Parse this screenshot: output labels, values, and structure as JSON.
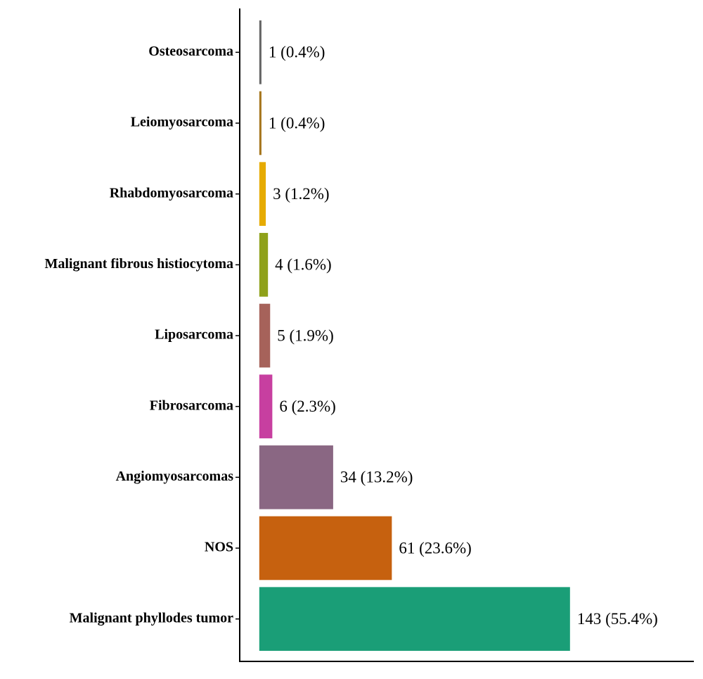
{
  "chart_data": {
    "type": "bar",
    "orientation": "horizontal",
    "categories": [
      "Osteosarcoma",
      "Leiomyosarcoma",
      "Rhabdomyosarcoma",
      "Malignant fibrous histiocytoma",
      "Liposarcoma",
      "Fibrosarcoma",
      "Angiomyosarcomas",
      "NOS",
      "Malignant phyllodes tumor"
    ],
    "values": [
      1,
      1,
      3,
      4,
      5,
      6,
      34,
      61,
      143
    ],
    "value_labels": [
      "1 (0.4%)",
      "1 (0.4%)",
      "3 (1.2%)",
      "4 (1.6%)",
      "5 (1.9%)",
      "6 (2.3%)",
      "34 (13.2%)",
      "61 (23.6%)",
      "143 (55.4%)"
    ],
    "colors": [
      "#666666",
      "#a6761d",
      "#e6ab02",
      "#8fa11a",
      "#a6625a",
      "#c73fa0",
      "#8a6783",
      "#c6610f",
      "#1a9e77"
    ],
    "xlim": [
      -9,
      200
    ]
  }
}
